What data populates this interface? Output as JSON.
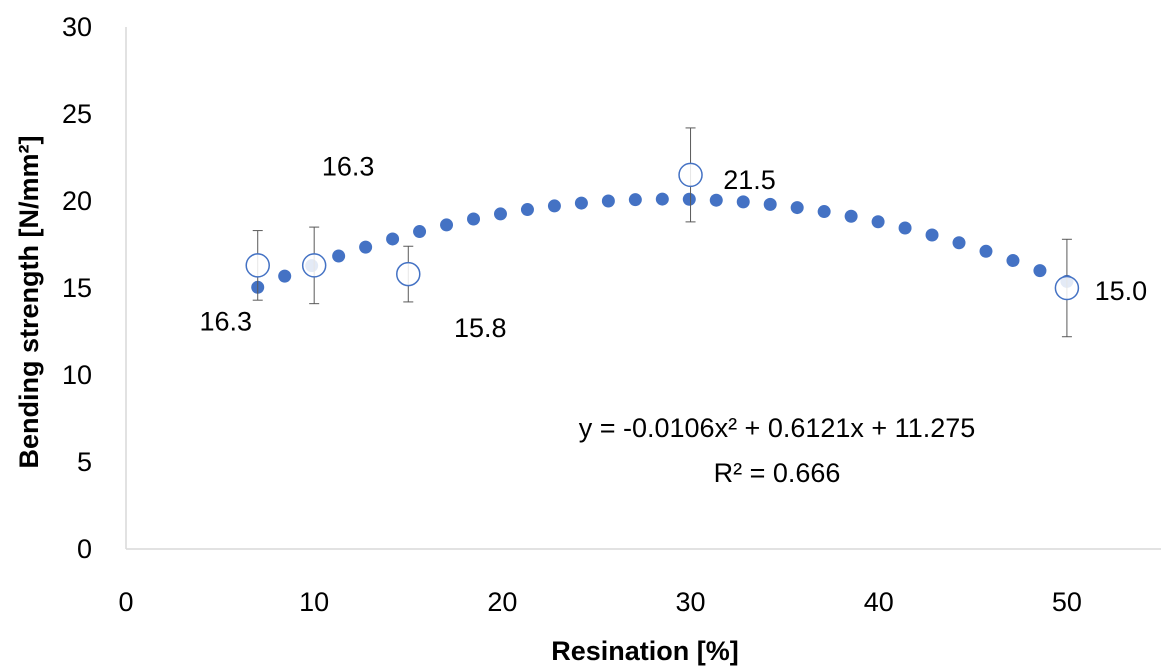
{
  "chart_data": {
    "type": "scatter",
    "title": "",
    "xlabel": "Resination [%]",
    "ylabel": "Bending strength [N/mm²]",
    "xlim": [
      0,
      55
    ],
    "ylim": [
      0,
      30
    ],
    "xticks": [
      0,
      10,
      20,
      30,
      40,
      50
    ],
    "yticks": [
      0,
      5,
      10,
      15,
      20,
      25,
      30
    ],
    "grid": false,
    "series": [
      {
        "marker": "open-circle",
        "color": "#4472C4",
        "x": [
          7,
          10,
          15,
          30,
          50
        ],
        "y": [
          16.3,
          16.3,
          15.8,
          21.5,
          15.0
        ],
        "error_low": [
          14.3,
          14.1,
          14.2,
          18.8,
          12.2
        ],
        "error_high": [
          18.3,
          18.5,
          17.4,
          24.2,
          17.8
        ],
        "data_labels": [
          "16.3",
          "16.3",
          "15.8",
          "21.5",
          "15.0"
        ]
      }
    ],
    "trendline": {
      "type": "polynomial-2",
      "style": "dotted",
      "color": "#4472C4",
      "coefficients": [
        -0.0106,
        0.6121,
        11.275
      ],
      "x_range": [
        7,
        50
      ],
      "equation": "y = -0.0106x² + 0.6121x + 11.275",
      "r_squared": "R² = 0.666"
    }
  }
}
